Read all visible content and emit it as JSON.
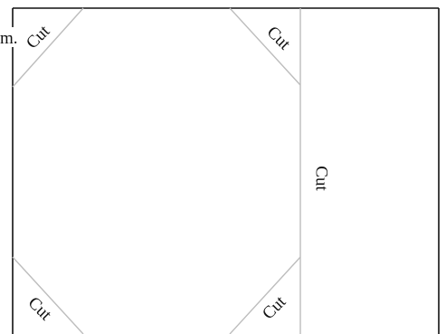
{
  "fragment_text": "m.",
  "cut_labels": {
    "top_left": "Cut",
    "top_right": "Cut",
    "middle": "Cut",
    "bottom_left": "Cut",
    "bottom_right": "Cut"
  },
  "colors": {
    "border": "#111111",
    "cut_line": "#bdbdbd",
    "text": "#111111",
    "background": "#ffffff"
  }
}
